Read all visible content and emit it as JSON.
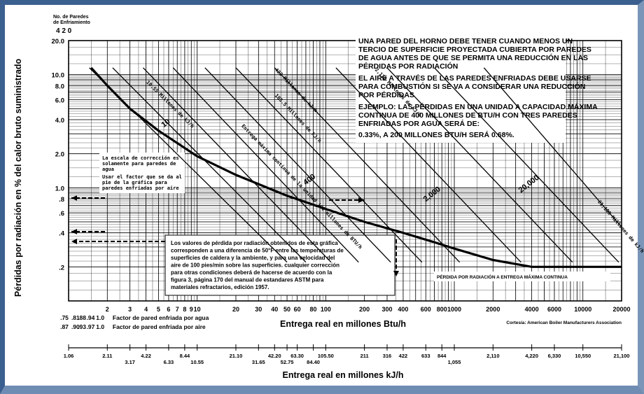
{
  "chart_data": {
    "type": "line",
    "x_scale": "log",
    "y_scale": "log",
    "xlim": [
      1,
      20000
    ],
    "ylim": [
      0.1,
      20
    ],
    "grid": true,
    "ylabel": "Pérdidas por radiación en % del calor bruto suministrado",
    "xlabel": "Entrega real en millones Btu/h",
    "xlabel2": "Entrega real en millones kJ/h",
    "y_ticks": [
      {
        "v": 20,
        "t": "20.0"
      },
      {
        "v": 10,
        "t": "10.0"
      },
      {
        "v": 8,
        "t": "8.0"
      },
      {
        "v": 6,
        "t": "6.0"
      },
      {
        "v": 4,
        "t": "4.0"
      },
      {
        "v": 2,
        "t": "2.0"
      },
      {
        "v": 1,
        "t": "1.0"
      },
      {
        "v": 0.8,
        "t": ".8"
      },
      {
        "v": 0.6,
        "t": ".6"
      },
      {
        "v": 0.4,
        "t": ".4"
      },
      {
        "v": 0.2,
        "t": ".2"
      }
    ],
    "x_ticks": [
      {
        "v": 2,
        "t": "2"
      },
      {
        "v": 3,
        "t": "3"
      },
      {
        "v": 4,
        "t": "4"
      },
      {
        "v": 5,
        "t": "5"
      },
      {
        "v": 6,
        "t": "6"
      },
      {
        "v": 7,
        "t": "7"
      },
      {
        "v": 8,
        "t": "8"
      },
      {
        "v": 9,
        "t": "9"
      },
      {
        "v": 10,
        "t": "10"
      },
      {
        "v": 20,
        "t": "20"
      },
      {
        "v": 30,
        "t": "30"
      },
      {
        "v": 40,
        "t": "40"
      },
      {
        "v": 50,
        "t": "50"
      },
      {
        "v": 60,
        "t": "60"
      },
      {
        "v": 80,
        "t": "80"
      },
      {
        "v": 100,
        "t": "100"
      },
      {
        "v": 200,
        "t": "200"
      },
      {
        "v": 300,
        "t": "300"
      },
      {
        "v": 400,
        "t": "400"
      },
      {
        "v": 600,
        "t": "600"
      },
      {
        "v": 800,
        "t": "800"
      },
      {
        "v": 1000,
        "t": "1000"
      },
      {
        "v": 2000,
        "t": "2000"
      },
      {
        "v": 4000,
        "t": "4000"
      },
      {
        "v": 6000,
        "t": "6000"
      },
      {
        "v": 10000,
        "t": "10000"
      },
      {
        "v": 20000,
        "t": "20000"
      }
    ],
    "factor_water": [
      {
        "v": 1.0,
        "t": ".75"
      },
      {
        "v": 1.22,
        "t": ".81"
      },
      {
        "v": 1.37,
        "t": ".88"
      },
      {
        "v": 1.6,
        "t": ".94"
      },
      {
        "v": 1.9,
        "t": "1.0"
      }
    ],
    "factor_air": [
      {
        "v": 1.0,
        "t": ".87"
      },
      {
        "v": 1.22,
        "t": ".90"
      },
      {
        "v": 1.37,
        "t": ".93"
      },
      {
        "v": 1.6,
        "t": ".97"
      },
      {
        "v": 1.9,
        "t": "1.0"
      }
    ],
    "factor_water_label": "Factor de  pared enfriada por agua",
    "factor_air_label": "Factor de pared enfriada por aire",
    "walls_label_1": "No. de Paredes",
    "walls_label_2": "de Enfriamiento",
    "walls_values": "4 2 0",
    "kj_ticks": [
      {
        "v": 1.0,
        "t": "1.06",
        "row": 0
      },
      {
        "v": 2,
        "t": "2.11",
        "row": 0
      },
      {
        "v": 3,
        "t": "3.17",
        "row": 1
      },
      {
        "v": 4,
        "t": "4.22",
        "row": 0
      },
      {
        "v": 6,
        "t": "6.33",
        "row": 1
      },
      {
        "v": 8,
        "t": "8.44",
        "row": 0
      },
      {
        "v": 10,
        "t": "10.55",
        "row": 1
      },
      {
        "v": 20,
        "t": "21.10",
        "row": 0
      },
      {
        "v": 30,
        "t": "31.65",
        "row": 1
      },
      {
        "v": 40,
        "t": "42.20",
        "row": 0
      },
      {
        "v": 50,
        "t": "52.75",
        "row": 1
      },
      {
        "v": 60,
        "t": "63.30",
        "row": 0
      },
      {
        "v": 80,
        "t": "84.40",
        "row": 1
      },
      {
        "v": 100,
        "t": "105.50",
        "row": 0
      },
      {
        "v": 200,
        "t": "211",
        "row": 0
      },
      {
        "v": 300,
        "t": "316",
        "row": 0
      },
      {
        "v": 400,
        "t": "422",
        "row": 0
      },
      {
        "v": 600,
        "t": "633",
        "row": 0
      },
      {
        "v": 800,
        "t": "844",
        "row": 0
      },
      {
        "v": 1000,
        "t": "1,055",
        "row": 1
      },
      {
        "v": 2000,
        "t": "2,110",
        "row": 0
      },
      {
        "v": 4000,
        "t": "4,220",
        "row": 0
      },
      {
        "v": 6000,
        "t": "6,330",
        "row": 0
      },
      {
        "v": 10000,
        "t": "10,550",
        "row": 0
      },
      {
        "v": 20000,
        "t": "21,100",
        "row": 0
      }
    ],
    "series": [
      {
        "name": "",
        "style": "bold",
        "x": [
          1.5,
          2,
          3,
          5,
          10,
          20,
          50,
          100,
          200,
          400,
          700,
          1000,
          2000,
          4000,
          10000,
          20000
        ],
        "y": [
          11.5,
          8,
          5,
          3.2,
          1.9,
          1.3,
          0.85,
          0.65,
          0.5,
          0.4,
          0.33,
          0.29,
          0.23,
          0.2,
          0.2,
          0.2
        ]
      }
    ],
    "diagonals": [
      {
        "x0": 1.45,
        "y0": 11.5,
        "x1": 50,
        "y1": 0.22,
        "label": "10.55 Millones de kJ/h",
        "lx": 4,
        "ly": 8.5
      },
      {
        "x0": 2.2,
        "y0": 11.5,
        "x1": 70,
        "y1": 0.22,
        "label": "",
        "lx": 0,
        "ly": 0
      },
      {
        "x0": 3.8,
        "y0": 11.5,
        "x1": 110,
        "y1": 0.22,
        "label": "Entrega máxima continua de la unidad 100 millones de BTU/h",
        "lx": 22,
        "ly": 3.5
      },
      {
        "x0": 6.5,
        "y0": 11.5,
        "x1": 180,
        "y1": 0.22,
        "label": "105.5 Millones de kJ/h",
        "lx": 40,
        "ly": 6.5
      },
      {
        "x0": 11.5,
        "y0": 11.5,
        "x1": 320,
        "y1": 0.22,
        "label": "422 Millones de kJ/h",
        "lx": 40,
        "ly": 11
      },
      {
        "x0": 20,
        "y0": 11.5,
        "x1": 560,
        "y1": 0.22,
        "label": "",
        "lx": 0,
        "ly": 0
      },
      {
        "x0": 40,
        "y0": 11.5,
        "x1": 1100,
        "y1": 0.22,
        "label": "2,110 Millones de kJ/h",
        "lx": 240,
        "ly": 11
      },
      {
        "x0": 120,
        "y0": 11.5,
        "x1": 3300,
        "y1": 0.22,
        "label": "",
        "lx": 0,
        "ly": 0
      },
      {
        "x0": 300,
        "y0": 11.5,
        "x1": 8300,
        "y1": 0.22,
        "label": "",
        "lx": 0,
        "ly": 0
      },
      {
        "x0": 700,
        "y0": 11.5,
        "x1": 19000,
        "y1": 0.22,
        "label": "",
        "lx": 0,
        "ly": 0
      },
      {
        "x0": 1700,
        "y0": 11.5,
        "x1": 20000,
        "y1": 0.45,
        "label": "21,100 Millones de kJ/h",
        "lx": 13000,
        "ly": 0.75
      }
    ],
    "curve_labels": [
      {
        "x": 5.5,
        "y": 3.4,
        "t": "10"
      },
      {
        "x": 70,
        "y": 1.05,
        "t": "400"
      },
      {
        "x": 600,
        "y": 0.75,
        "t": "2,000"
      },
      {
        "x": 3300,
        "y": 0.9,
        "t": "20,000"
      }
    ],
    "notes": [
      "UNA PARED DEL HORNO DEBE TENER CUANDO MENOS UN",
      "TERCIO DE SUPERFICIE PROYECTADA CUBIERTA POR PAREDES",
      "DE AGUA ANTES DE QUE SE PERMITA UNA REDUCCIÓN EN LAS",
      "PÉRDIDAS POR RADIACIÓN",
      "EL AIRE A TRAVÉS DE LAS PAREDES ENFRIADAS DEBE USARSE",
      "PARA COMBUSTIÓN SI SE VA A CONSIDERAR UNA REDUCCIÓN",
      "POR PÉRDIDAS",
      "EJEMPLO: LAS PÉRDIDAS EN UNA UNIDAD A CAPACIDAD MÁXIMA",
      "CONTINUA DE 400 MILLONES DE BTU/H CON TRES PAREDES",
      "ENFRIADAS POR AGUA SERÁ DE:",
      "0.33%, A 200 MILLONES BTU/H SERÁ 0.68%."
    ],
    "box_scale": [
      "La escala de corrección es",
      "solamente para paredes de",
      "agua",
      "Usar el factor que se da al",
      "pie de la gráfica para",
      "paredes enfriadas por aire"
    ],
    "box_values": [
      "Los valores de pérdida por radiación obtenidos de esta gráfica",
      "corresponden a una diferencia de 50°F entre las temperaturas de",
      "superficies de caldera y la ambiente, y para una velocidad del",
      "aire de 100 pies/min sobre las superficies. cualquier corrección",
      "para otras condiciones deberá de hacerse de acuerdo con la",
      "figura 3, página 170 del manual de estandares ASTM para",
      "materiales refractarios, edición 1957."
    ],
    "max_label": "PÉRDIDA POR RADIACIÓN A ENTREGA MÁXIMA CONTINUA",
    "credit": "Cortesía: American Boiler Manufacturers Association"
  }
}
